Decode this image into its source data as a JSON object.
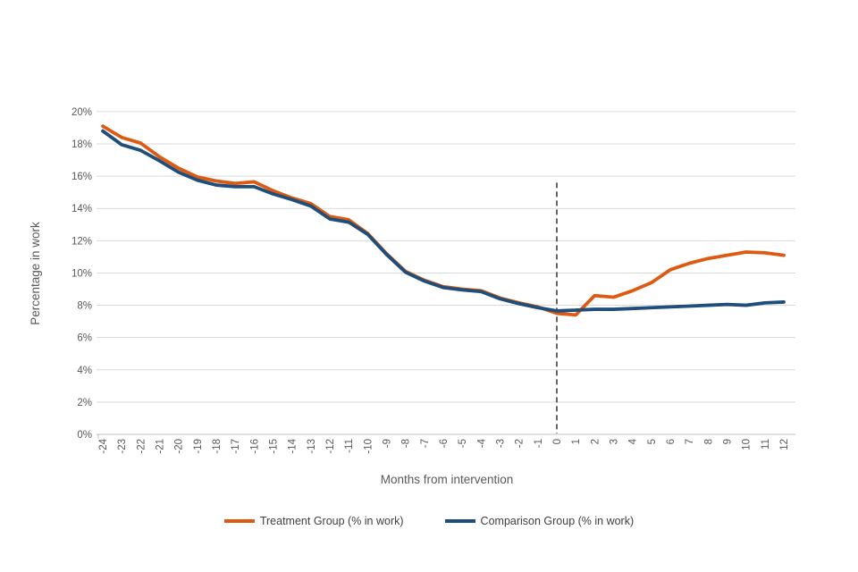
{
  "chart_data": {
    "type": "line",
    "title": "",
    "xlabel": "Months from intervention",
    "ylabel": "Percentage in work",
    "x": [
      -24,
      -23,
      -22,
      -21,
      -20,
      -19,
      -18,
      -17,
      -16,
      -15,
      -14,
      -13,
      -12,
      -11,
      -10,
      -9,
      -8,
      -7,
      -6,
      -5,
      -4,
      -3,
      -2,
      -1,
      0,
      1,
      2,
      3,
      4,
      5,
      6,
      7,
      8,
      9,
      10,
      11,
      12
    ],
    "series": [
      {
        "name": "Treatment Group (% in work)",
        "color": "#DD5A13",
        "values": [
          19.1,
          18.4,
          18.05,
          17.2,
          16.5,
          15.95,
          15.7,
          15.55,
          15.65,
          15.1,
          14.65,
          14.3,
          13.5,
          13.3,
          12.45,
          11.2,
          10.1,
          9.55,
          9.15,
          9.0,
          8.9,
          8.45,
          8.15,
          7.9,
          7.5,
          7.4,
          8.6,
          8.5,
          8.9,
          9.4,
          10.2,
          10.6,
          10.9,
          11.1,
          11.3,
          11.25,
          11.1
        ]
      },
      {
        "name": "Comparison Group (% in work)",
        "color": "#1E4E79",
        "values": [
          18.8,
          17.95,
          17.6,
          16.95,
          16.25,
          15.75,
          15.45,
          15.35,
          15.35,
          14.9,
          14.55,
          14.15,
          13.35,
          13.15,
          12.4,
          11.15,
          10.05,
          9.5,
          9.1,
          8.95,
          8.85,
          8.4,
          8.1,
          7.85,
          7.65,
          7.7,
          7.75,
          7.75,
          7.8,
          7.85,
          7.9,
          7.95,
          8.0,
          8.05,
          8.0,
          8.15,
          8.2
        ]
      }
    ],
    "ylim": [
      0,
      20
    ],
    "ytick_step": 2,
    "ytick_suffix": "%",
    "grid": "horizontal",
    "gridline_color": "#D9D9D9",
    "axis_line_color": "#BFBFBF",
    "tick_label_color": "#595959",
    "annotation": {
      "type": "vertical-dashed-line",
      "x": 0,
      "top_value": 15.6,
      "color": "#404040"
    },
    "legend_position": "bottom"
  }
}
